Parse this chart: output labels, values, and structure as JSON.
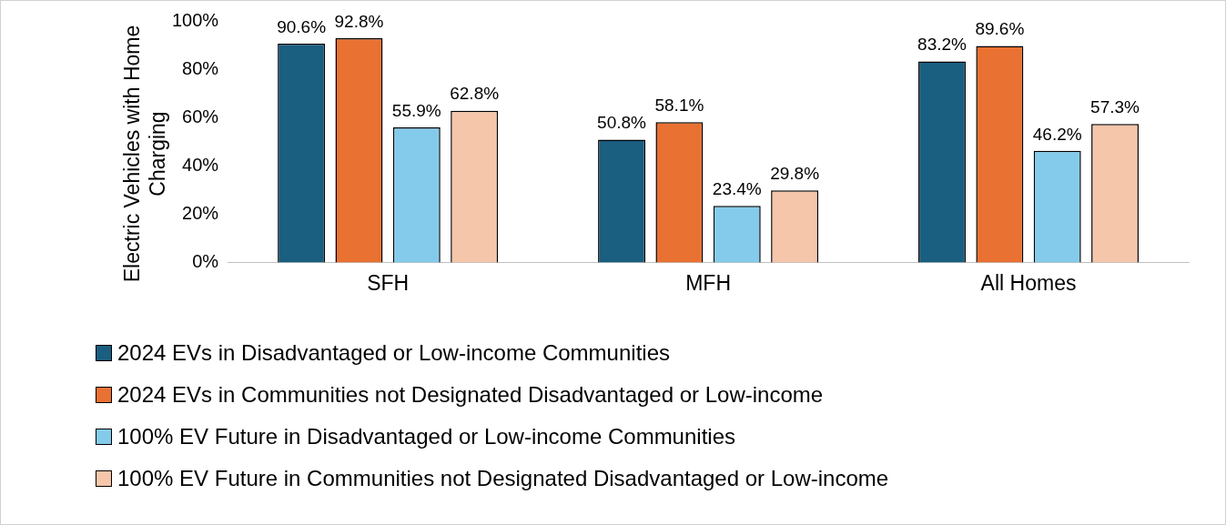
{
  "chart_data": {
    "type": "bar",
    "ylabel": "Electric Vehicles with Home Charging",
    "categories": [
      "SFH",
      "MFH",
      "All Homes"
    ],
    "series": [
      {
        "name": "2024 EVs in Disadvantaged or Low-income Communities",
        "color": "#1a5e80",
        "values": [
          90.6,
          50.8,
          83.2
        ],
        "value_labels": [
          "90.6%",
          "50.8%",
          "83.2%"
        ]
      },
      {
        "name": "2024 EVs in Communities not Designated Disadvantaged or Low-income",
        "color": "#e97132",
        "values": [
          92.8,
          58.1,
          89.6
        ],
        "value_labels": [
          "92.8%",
          "58.1%",
          "89.6%"
        ]
      },
      {
        "name": "100% EV Future in Disadvantaged or Low-income Communities",
        "color": "#84cbeb",
        "values": [
          55.9,
          23.4,
          46.2
        ],
        "value_labels": [
          "55.9%",
          "23.4%",
          "46.2%"
        ]
      },
      {
        "name": "100% EV Future in Communities not Designated Disadvantaged or Low-income",
        "color": "#f5c6aa",
        "values": [
          62.8,
          29.8,
          57.3
        ],
        "value_labels": [
          "62.8%",
          "29.8%",
          "57.3%"
        ]
      }
    ],
    "ylim": [
      0,
      100
    ],
    "yticks": [
      {
        "value": 0,
        "label": "0%"
      },
      {
        "value": 20,
        "label": "20%"
      },
      {
        "value": 40,
        "label": "40%"
      },
      {
        "value": 60,
        "label": "60%"
      },
      {
        "value": 80,
        "label": "80%"
      },
      {
        "value": 100,
        "label": "100%"
      }
    ],
    "grid": false,
    "legend": "bottom"
  }
}
